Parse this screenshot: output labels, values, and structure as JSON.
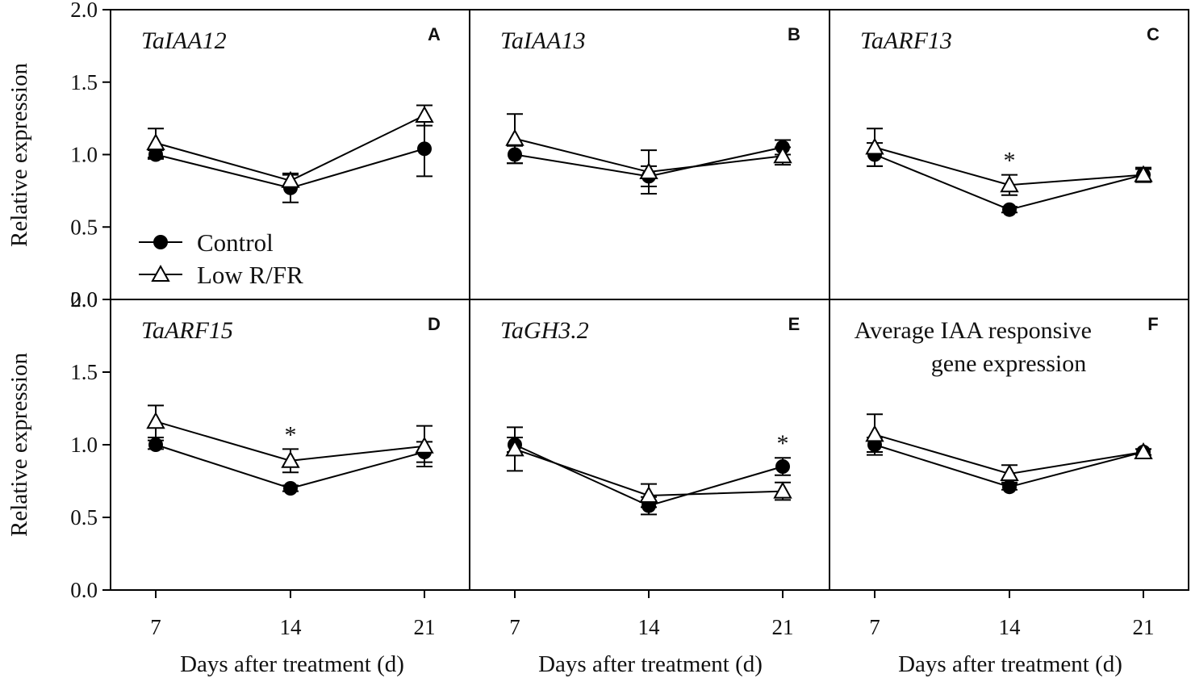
{
  "figure": {
    "ylabel": "Relative expression",
    "xlabel": "Days after treatment (d)",
    "legend": {
      "control": "Control",
      "low": "Low R/FR"
    }
  },
  "chart_data": [
    {
      "type": "line",
      "letter": "A",
      "title": "TaIAA12",
      "italic": true,
      "x": [
        7,
        14,
        21
      ],
      "xlabel": "",
      "ylabel": "Relative expression",
      "ylim": [
        0,
        2
      ],
      "yticks": [
        "0.0",
        "0.5",
        "1.0",
        "1.5",
        "2.0"
      ],
      "series": [
        {
          "name": "Control",
          "values": [
            1.0,
            0.77,
            1.04
          ],
          "err": [
            0.03,
            0.1,
            0.19
          ]
        },
        {
          "name": "Low R/FR",
          "values": [
            1.08,
            0.82,
            1.27
          ],
          "err": [
            0.1,
            0.04,
            0.07
          ]
        }
      ],
      "significance": []
    },
    {
      "type": "line",
      "letter": "B",
      "title": "TaIAA13",
      "italic": true,
      "x": [
        7,
        14,
        21
      ],
      "xlabel": "",
      "ylabel": "",
      "ylim": [
        0,
        2
      ],
      "series": [
        {
          "name": "Control",
          "values": [
            1.0,
            0.85,
            1.05
          ],
          "err": [
            0.06,
            0.07,
            0.05
          ]
        },
        {
          "name": "Low R/FR",
          "values": [
            1.11,
            0.88,
            0.99
          ],
          "err": [
            0.17,
            0.15,
            0.06
          ]
        }
      ],
      "significance": []
    },
    {
      "type": "line",
      "letter": "C",
      "title": "TaARF13",
      "italic": true,
      "x": [
        7,
        14,
        21
      ],
      "xlabel": "",
      "ylabel": "",
      "ylim": [
        0,
        2
      ],
      "series": [
        {
          "name": "Control",
          "values": [
            1.0,
            0.62,
            0.86
          ],
          "err": [
            0.08,
            0.02,
            0.05
          ]
        },
        {
          "name": "Low R/FR",
          "values": [
            1.05,
            0.79,
            0.86
          ],
          "err": [
            0.13,
            0.07,
            0.04
          ]
        }
      ],
      "significance": [
        {
          "x": 14,
          "label": "*"
        }
      ]
    },
    {
      "type": "line",
      "letter": "D",
      "title": "TaARF15",
      "italic": true,
      "x": [
        7,
        14,
        21
      ],
      "xlabel": "Days after treatment (d)",
      "ylabel": "Relative expression",
      "ylim": [
        0,
        2
      ],
      "yticks": [
        "0.0",
        "0.5",
        "1.0",
        "1.5",
        "2.0"
      ],
      "series": [
        {
          "name": "Control",
          "values": [
            1.0,
            0.7,
            0.95
          ],
          "err": [
            0.03,
            0.02,
            0.07
          ]
        },
        {
          "name": "Low R/FR",
          "values": [
            1.16,
            0.89,
            0.99
          ],
          "err": [
            0.11,
            0.08,
            0.14
          ]
        }
      ],
      "significance": [
        {
          "x": 14,
          "label": "*"
        }
      ]
    },
    {
      "type": "line",
      "letter": "E",
      "title": "TaGH3.2",
      "italic": true,
      "x": [
        7,
        14,
        21
      ],
      "xlabel": "Days after treatment (d)",
      "ylabel": "",
      "ylim": [
        0,
        2
      ],
      "series": [
        {
          "name": "Control",
          "values": [
            1.0,
            0.58,
            0.85
          ],
          "err": [
            0.05,
            0.06,
            0.06
          ]
        },
        {
          "name": "Low R/FR",
          "values": [
            0.97,
            0.65,
            0.68
          ],
          "err": [
            0.15,
            0.08,
            0.06
          ]
        }
      ],
      "significance": [
        {
          "x": 21,
          "label": "*"
        }
      ]
    },
    {
      "type": "line",
      "letter": "F",
      "title": "Average IAA responsive",
      "subtitle": "gene expression",
      "italic": false,
      "x": [
        7,
        14,
        21
      ],
      "xlabel": "Days after treatment (d)",
      "ylabel": "",
      "ylim": [
        0,
        2
      ],
      "series": [
        {
          "name": "Control",
          "values": [
            1.0,
            0.71,
            0.95
          ],
          "err": [
            0.05,
            0.02,
            0.02
          ]
        },
        {
          "name": "Low R/FR",
          "values": [
            1.07,
            0.8,
            0.95
          ],
          "err": [
            0.14,
            0.06,
            0.02
          ]
        }
      ],
      "significance": []
    }
  ]
}
